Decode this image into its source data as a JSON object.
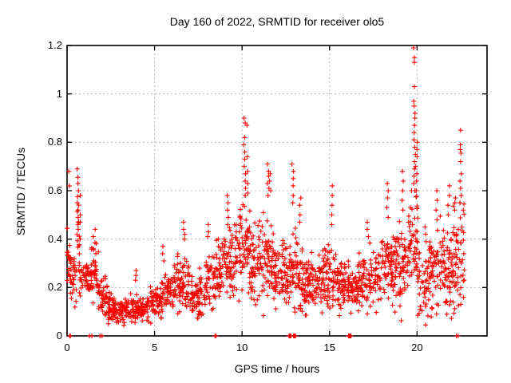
{
  "colors": {
    "background": "#ffffff",
    "marker": "#ff0000",
    "axis": "#000000",
    "grid": "#b8b8b8",
    "text": "#000000"
  },
  "chart_data": {
    "type": "scatter",
    "title": "Day 160 of 2022, SRMTID for receiver olo5",
    "xlabel": "GPS time / hours",
    "ylabel": "SRMTID / TECUs",
    "xlim": [
      0,
      24
    ],
    "ylim": [
      0,
      1.2
    ],
    "xticks": [
      0,
      5,
      10,
      15,
      20
    ],
    "xtick_labels": [
      "0",
      "5",
      "10",
      "15",
      "20"
    ],
    "yticks": [
      0,
      0.2,
      0.4,
      0.6,
      0.8,
      1,
      1.2
    ],
    "ytick_labels": [
      "0",
      "0.2",
      "0.4",
      "0.6",
      "0.8",
      "1",
      "1.2"
    ],
    "grid": true,
    "legend": "none",
    "marker": "plus",
    "series_name": "SRMTID",
    "max_point": {
      "x": 19.85,
      "y": 1.19
    },
    "bands_format": "[x_start, x_end, count, y_center_start, y_center_end, y_spread, y_max] — dense scatter band envelopes estimated from plot",
    "bands": [
      [
        0.0,
        0.15,
        14,
        0.3,
        0.3,
        0.1,
        0.62
      ],
      [
        0.15,
        0.5,
        30,
        0.25,
        0.23,
        0.055,
        0.42
      ],
      [
        0.5,
        0.8,
        22,
        0.33,
        0.3,
        0.1,
        0.55
      ],
      [
        0.8,
        1.4,
        48,
        0.24,
        0.23,
        0.05,
        0.37
      ],
      [
        1.4,
        1.8,
        32,
        0.26,
        0.24,
        0.06,
        0.4
      ],
      [
        1.8,
        2.3,
        40,
        0.17,
        0.14,
        0.045,
        0.3
      ],
      [
        2.3,
        3.0,
        60,
        0.12,
        0.11,
        0.03,
        0.2
      ],
      [
        3.0,
        4.6,
        130,
        0.105,
        0.11,
        0.028,
        0.18
      ],
      [
        4.6,
        5.4,
        65,
        0.13,
        0.15,
        0.04,
        0.25
      ],
      [
        5.4,
        6.2,
        65,
        0.17,
        0.2,
        0.05,
        0.33
      ],
      [
        6.2,
        7.0,
        65,
        0.22,
        0.2,
        0.06,
        0.42
      ],
      [
        7.0,
        7.9,
        70,
        0.15,
        0.16,
        0.05,
        0.28
      ],
      [
        7.9,
        8.5,
        50,
        0.21,
        0.23,
        0.06,
        0.4
      ],
      [
        8.5,
        9.0,
        42,
        0.25,
        0.27,
        0.07,
        0.45
      ],
      [
        9.0,
        9.6,
        50,
        0.29,
        0.31,
        0.08,
        0.52
      ],
      [
        9.6,
        10.0,
        36,
        0.32,
        0.34,
        0.09,
        0.55
      ],
      [
        10.0,
        10.5,
        45,
        0.38,
        0.36,
        0.11,
        0.62
      ],
      [
        10.5,
        11.2,
        62,
        0.3,
        0.29,
        0.09,
        0.52
      ],
      [
        11.2,
        11.8,
        55,
        0.32,
        0.3,
        0.1,
        0.55
      ],
      [
        11.8,
        12.6,
        70,
        0.26,
        0.24,
        0.07,
        0.45
      ],
      [
        12.6,
        13.1,
        45,
        0.27,
        0.26,
        0.08,
        0.5
      ],
      [
        13.1,
        13.6,
        45,
        0.25,
        0.24,
        0.08,
        0.48
      ],
      [
        13.6,
        14.6,
        85,
        0.22,
        0.21,
        0.06,
        0.4
      ],
      [
        14.6,
        15.4,
        68,
        0.24,
        0.23,
        0.07,
        0.45
      ],
      [
        15.4,
        16.4,
        85,
        0.21,
        0.2,
        0.06,
        0.38
      ],
      [
        16.4,
        17.5,
        90,
        0.21,
        0.22,
        0.06,
        0.4
      ],
      [
        17.5,
        18.6,
        90,
        0.26,
        0.28,
        0.08,
        0.5
      ],
      [
        18.6,
        19.5,
        78,
        0.3,
        0.33,
        0.1,
        0.55
      ],
      [
        19.5,
        20.1,
        55,
        0.38,
        0.36,
        0.12,
        0.6
      ],
      [
        20.1,
        20.7,
        42,
        0.2,
        0.22,
        0.08,
        0.42
      ],
      [
        20.7,
        21.4,
        58,
        0.26,
        0.27,
        0.1,
        0.5
      ],
      [
        21.4,
        22.0,
        55,
        0.25,
        0.27,
        0.09,
        0.5
      ],
      [
        22.0,
        22.7,
        60,
        0.28,
        0.3,
        0.11,
        0.55
      ]
    ],
    "columns_format": "spike columns: x in hours, ys = individual outlier values read from plot",
    "columns": [
      {
        "x": 0.07,
        "ys": [
          0.68,
          0.62
        ]
      },
      {
        "x": 0.62,
        "ys": [
          0.69,
          0.655,
          0.63,
          0.6,
          0.575,
          0.55,
          0.52,
          0.49,
          0.46,
          0.44
        ]
      },
      {
        "x": 0.7,
        "ys": [
          0.58,
          0.54,
          0.5,
          0.47
        ]
      },
      {
        "x": 1.55,
        "ys": [
          0.44,
          0.41,
          0.385,
          0.36
        ]
      },
      {
        "x": 3.9,
        "ys": [
          0.27,
          0.25,
          0.23
        ]
      },
      {
        "x": 5.5,
        "ys": [
          0.37,
          0.34,
          0.31
        ]
      },
      {
        "x": 6.7,
        "ys": [
          0.47,
          0.44,
          0.42,
          0.4
        ]
      },
      {
        "x": 8.1,
        "ys": [
          0.46,
          0.43,
          0.41
        ]
      },
      {
        "x": 8.6,
        "ys": [
          0.4,
          0.37
        ]
      },
      {
        "x": 9.2,
        "ys": [
          0.58,
          0.55,
          0.52,
          0.49,
          0.46
        ]
      },
      {
        "x": 10.15,
        "ys": [
          0.9,
          0.88,
          0.82,
          0.79,
          0.76,
          0.73,
          0.7,
          0.67,
          0.64,
          0.61,
          0.58
        ]
      },
      {
        "x": 10.3,
        "ys": [
          0.87,
          0.74,
          0.68,
          0.63,
          0.59
        ]
      },
      {
        "x": 11.5,
        "ys": [
          0.71,
          0.68,
          0.66,
          0.63,
          0.61,
          0.58
        ]
      },
      {
        "x": 11.62,
        "ys": [
          0.67,
          0.64,
          0.6
        ]
      },
      {
        "x": 12.9,
        "ys": [
          0.71,
          0.68,
          0.65,
          0.62,
          0.58,
          0.55
        ]
      },
      {
        "x": 13.3,
        "ys": [
          0.57,
          0.54,
          0.5,
          0.47
        ]
      },
      {
        "x": 15.1,
        "ys": [
          0.62,
          0.58,
          0.54,
          0.5,
          0.46
        ]
      },
      {
        "x": 17.2,
        "ys": [
          0.47,
          0.44,
          0.41
        ]
      },
      {
        "x": 18.3,
        "ys": [
          0.63,
          0.6,
          0.57,
          0.53,
          0.49
        ]
      },
      {
        "x": 19.2,
        "ys": [
          0.68,
          0.64,
          0.6,
          0.56,
          0.52
        ]
      },
      {
        "x": 19.85,
        "ys": [
          1.19,
          1.15,
          1.13,
          1.03,
          0.97,
          0.95,
          0.92,
          0.9,
          0.87,
          0.84,
          0.81,
          0.78,
          0.75,
          0.72,
          0.69,
          0.66,
          0.63,
          0.6
        ]
      },
      {
        "x": 19.97,
        "ys": [
          0.8,
          0.77,
          0.74,
          0.7,
          0.67,
          0.64
        ]
      },
      {
        "x": 20.5,
        "ys": [
          0.45,
          0.42,
          0.39
        ]
      },
      {
        "x": 21.1,
        "ys": [
          0.6,
          0.56,
          0.52,
          0.48
        ]
      },
      {
        "x": 21.8,
        "ys": [
          0.62,
          0.58,
          0.54,
          0.5
        ]
      },
      {
        "x": 22.15,
        "ys": [
          0.57,
          0.55,
          0.52
        ]
      },
      {
        "x": 22.5,
        "ys": [
          0.85,
          0.79,
          0.77,
          0.755,
          0.72,
          0.67,
          0.64,
          0.61,
          0.58,
          0.55
        ]
      },
      {
        "x": 22.65,
        "ys": [
          0.545,
          0.52
        ]
      }
    ],
    "axis_points_note": "markers sitting exactly on y=0 axis, x in hours",
    "axis_points": [
      0.15,
      0.19,
      1.28,
      1.42,
      1.88,
      2.0,
      8.45,
      8.52,
      12.68,
      12.72,
      12.76,
      12.8,
      12.94,
      12.98,
      13.02,
      13.06,
      16.08,
      16.13,
      16.18,
      16.23,
      22.25,
      22.35
    ]
  }
}
